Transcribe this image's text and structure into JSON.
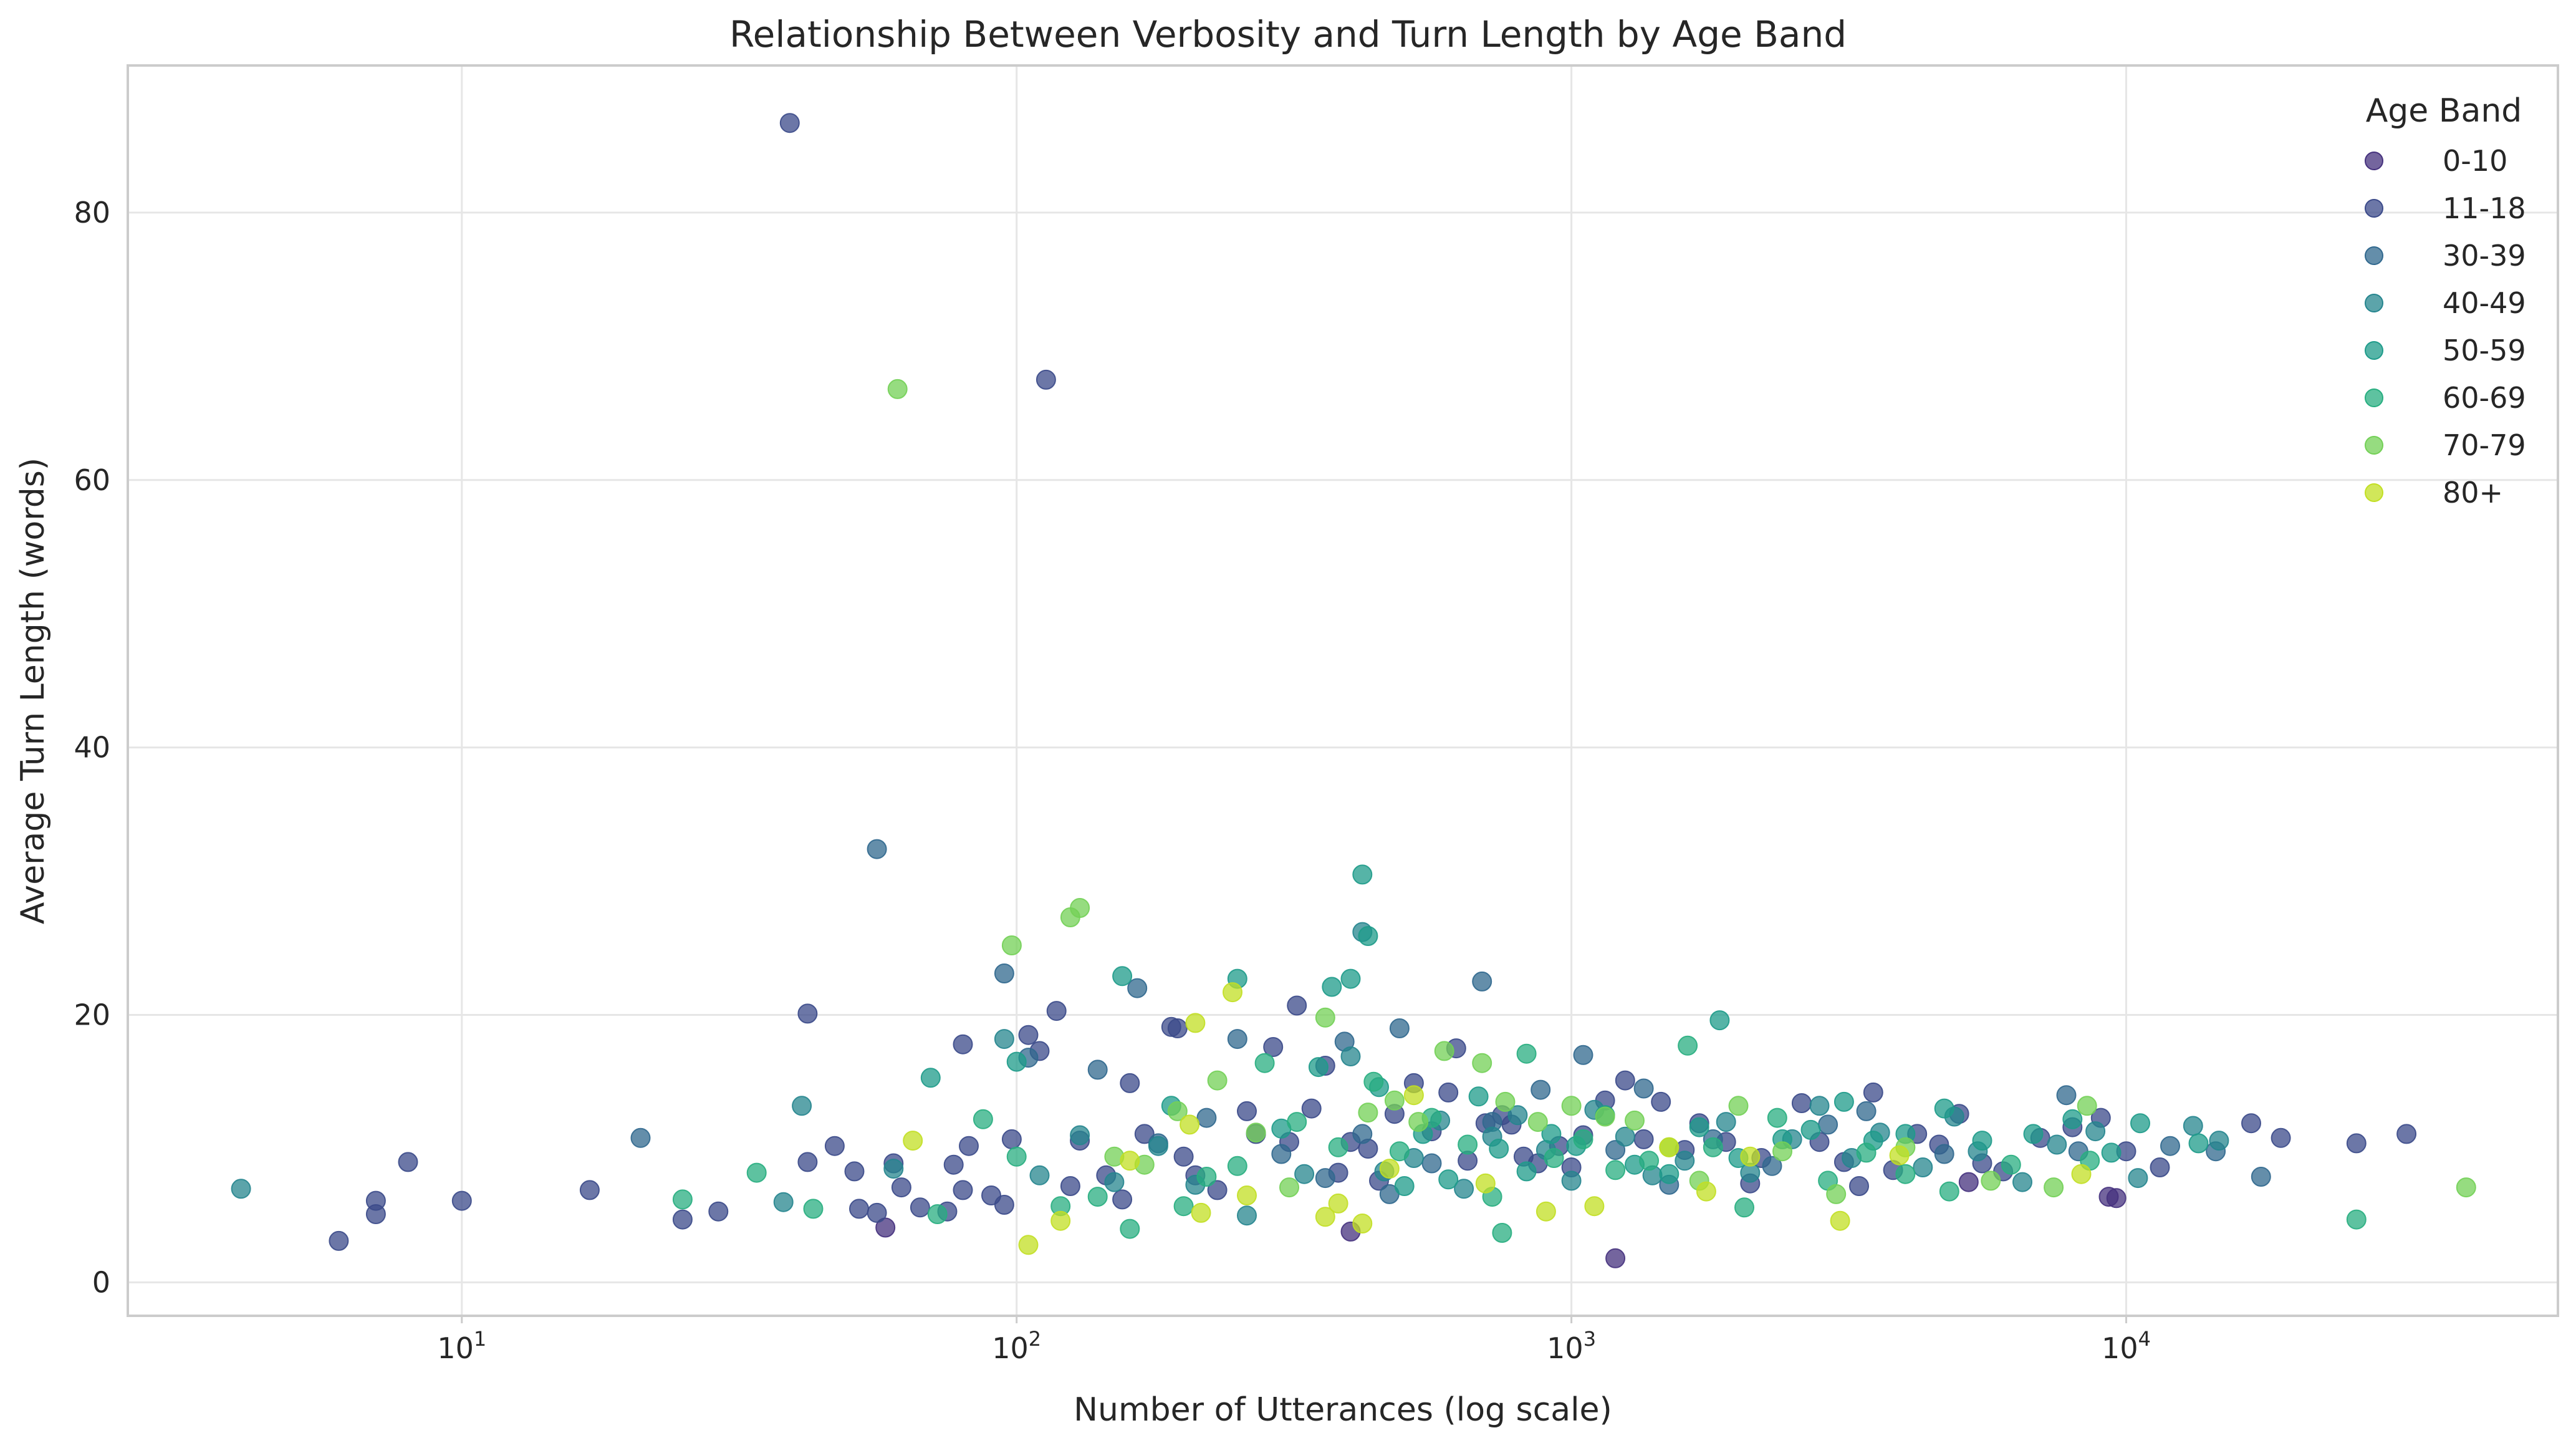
{
  "chart_data": {
    "type": "scatter",
    "title": "Relationship Between Verbosity and Turn Length by Age Band",
    "xlabel": "Number of Utterances (log scale)",
    "ylabel": "Average Turn Length (words)",
    "x_scale": "log",
    "xlim": [
      2.5,
      60000
    ],
    "ylim": [
      -2.5,
      91
    ],
    "x_ticks": [
      {
        "base": "10",
        "exp": "1",
        "value": 10
      },
      {
        "base": "10",
        "exp": "2",
        "value": 100
      },
      {
        "base": "10",
        "exp": "3",
        "value": 1000
      },
      {
        "base": "10",
        "exp": "4",
        "value": 10000
      }
    ],
    "y_ticks": [
      "0",
      "20",
      "40",
      "60",
      "80"
    ],
    "grid": true,
    "legend": {
      "title": "Age Band",
      "position": "upper right"
    },
    "series": [
      {
        "name": "0-10",
        "color": "#46327e",
        "points": [
          [
            58,
            4.1
          ],
          [
            400,
            3.8
          ],
          [
            1200,
            1.8
          ],
          [
            9300,
            6.4
          ],
          [
            9600,
            6.3
          ],
          [
            5200,
            7.5
          ]
        ]
      },
      {
        "name": "11-18",
        "color": "#3b4a8a",
        "points": [
          [
            39,
            86.7
          ],
          [
            113,
            67.5
          ],
          [
            6,
            3.1
          ],
          [
            7,
            5.1
          ],
          [
            7,
            6.1
          ],
          [
            8,
            9.0
          ],
          [
            10,
            6.1
          ],
          [
            17,
            6.9
          ],
          [
            25,
            4.7
          ],
          [
            29,
            5.3
          ],
          [
            42,
            20.1
          ],
          [
            42,
            9.0
          ],
          [
            47,
            10.2
          ],
          [
            51,
            8.3
          ],
          [
            52,
            5.5
          ],
          [
            56,
            5.2
          ],
          [
            60,
            8.9
          ],
          [
            62,
            7.1
          ],
          [
            67,
            5.6
          ],
          [
            75,
            5.3
          ],
          [
            77,
            8.8
          ],
          [
            80,
            17.8
          ],
          [
            80,
            6.9
          ],
          [
            82,
            10.2
          ],
          [
            90,
            6.5
          ],
          [
            95,
            5.8
          ],
          [
            98,
            10.7
          ],
          [
            105,
            18.5
          ],
          [
            110,
            17.3
          ],
          [
            118,
            20.3
          ],
          [
            125,
            7.2
          ],
          [
            130,
            10.6
          ],
          [
            145,
            8.0
          ],
          [
            155,
            6.2
          ],
          [
            160,
            14.9
          ],
          [
            170,
            11.1
          ],
          [
            190,
            19.1
          ],
          [
            195,
            19.0
          ],
          [
            200,
            9.4
          ],
          [
            210,
            8.0
          ],
          [
            230,
            6.9
          ],
          [
            260,
            12.8
          ],
          [
            270,
            11.1
          ],
          [
            290,
            17.6
          ],
          [
            310,
            10.5
          ],
          [
            320,
            20.7
          ],
          [
            340,
            13.0
          ],
          [
            360,
            16.2
          ],
          [
            380,
            8.2
          ],
          [
            400,
            10.5
          ],
          [
            430,
            10.0
          ],
          [
            450,
            7.6
          ],
          [
            480,
            12.6
          ],
          [
            520,
            14.9
          ],
          [
            560,
            11.3
          ],
          [
            600,
            14.2
          ],
          [
            620,
            17.5
          ],
          [
            650,
            9.1
          ],
          [
            700,
            11.9
          ],
          [
            750,
            12.5
          ],
          [
            780,
            11.8
          ],
          [
            820,
            9.4
          ],
          [
            870,
            8.9
          ],
          [
            950,
            10.2
          ],
          [
            1000,
            8.6
          ],
          [
            1050,
            11.0
          ],
          [
            1150,
            13.6
          ],
          [
            1250,
            15.1
          ],
          [
            1350,
            10.7
          ],
          [
            1450,
            13.5
          ],
          [
            1600,
            9.9
          ],
          [
            1700,
            11.9
          ],
          [
            1900,
            10.5
          ],
          [
            2100,
            7.4
          ],
          [
            2200,
            9.3
          ],
          [
            2600,
            13.4
          ],
          [
            2800,
            10.5
          ],
          [
            3100,
            9.0
          ],
          [
            3300,
            7.2
          ],
          [
            3500,
            14.2
          ],
          [
            3800,
            8.4
          ],
          [
            4200,
            11.1
          ],
          [
            4600,
            10.3
          ],
          [
            5000,
            12.6
          ],
          [
            5500,
            8.9
          ],
          [
            6000,
            8.3
          ],
          [
            7000,
            10.8
          ],
          [
            8000,
            11.6
          ],
          [
            9000,
            12.3
          ],
          [
            10000,
            9.8
          ],
          [
            11500,
            8.6
          ],
          [
            16800,
            11.9
          ],
          [
            19000,
            10.8
          ],
          [
            26000,
            10.4
          ],
          [
            32000,
            11.1
          ]
        ]
      },
      {
        "name": "30-39",
        "color": "#30688e",
        "points": [
          [
            21,
            10.8
          ],
          [
            56,
            32.4
          ],
          [
            95,
            23.1
          ],
          [
            105,
            16.8
          ],
          [
            140,
            15.9
          ],
          [
            165,
            22.0
          ],
          [
            180,
            10.4
          ],
          [
            220,
            12.3
          ],
          [
            250,
            18.2
          ],
          [
            300,
            9.6
          ],
          [
            360,
            7.8
          ],
          [
            390,
            18.0
          ],
          [
            420,
            11.1
          ],
          [
            470,
            6.6
          ],
          [
            490,
            19.0
          ],
          [
            560,
            8.9
          ],
          [
            690,
            22.5
          ],
          [
            720,
            12.0
          ],
          [
            880,
            14.4
          ],
          [
            1050,
            17.0
          ],
          [
            1200,
            9.9
          ],
          [
            1350,
            14.5
          ],
          [
            1500,
            7.3
          ],
          [
            1800,
            10.7
          ],
          [
            2300,
            8.7
          ],
          [
            2900,
            11.8
          ],
          [
            3400,
            12.8
          ],
          [
            4700,
            9.6
          ],
          [
            7800,
            14.0
          ],
          [
            8200,
            9.8
          ],
          [
            12000,
            10.2
          ],
          [
            14500,
            9.8
          ],
          [
            17500,
            7.9
          ]
        ]
      },
      {
        "name": "40-49",
        "color": "#25858e",
        "points": [
          [
            4,
            7.0
          ],
          [
            38,
            6.0
          ],
          [
            41,
            13.2
          ],
          [
            60,
            8.5
          ],
          [
            95,
            18.2
          ],
          [
            110,
            8.0
          ],
          [
            130,
            11.0
          ],
          [
            150,
            7.5
          ],
          [
            180,
            10.2
          ],
          [
            210,
            7.3
          ],
          [
            260,
            5.0
          ],
          [
            330,
            8.1
          ],
          [
            400,
            16.9
          ],
          [
            420,
            26.2
          ],
          [
            460,
            8.3
          ],
          [
            520,
            9.3
          ],
          [
            580,
            12.1
          ],
          [
            640,
            7.0
          ],
          [
            720,
            10.9
          ],
          [
            800,
            12.5
          ],
          [
            900,
            9.9
          ],
          [
            1000,
            7.6
          ],
          [
            1100,
            12.9
          ],
          [
            1250,
            10.9
          ],
          [
            1400,
            8.0
          ],
          [
            1600,
            9.1
          ],
          [
            1900,
            12.0
          ],
          [
            2100,
            8.2
          ],
          [
            2500,
            10.7
          ],
          [
            2800,
            13.2
          ],
          [
            3200,
            9.3
          ],
          [
            3600,
            11.2
          ],
          [
            4300,
            8.6
          ],
          [
            4900,
            12.4
          ],
          [
            5400,
            9.8
          ],
          [
            6500,
            7.5
          ],
          [
            7500,
            10.3
          ],
          [
            8800,
            11.3
          ],
          [
            10500,
            7.8
          ],
          [
            13200,
            11.7
          ],
          [
            14700,
            10.6
          ]
        ]
      },
      {
        "name": "50-59",
        "color": "#1e9b8a",
        "points": [
          [
            70,
            15.3
          ],
          [
            100,
            16.5
          ],
          [
            155,
            22.9
          ],
          [
            190,
            13.2
          ],
          [
            250,
            22.7
          ],
          [
            300,
            11.5
          ],
          [
            350,
            16.1
          ],
          [
            370,
            22.1
          ],
          [
            400,
            22.7
          ],
          [
            420,
            30.5
          ],
          [
            430,
            25.9
          ],
          [
            450,
            14.6
          ],
          [
            500,
            7.2
          ],
          [
            540,
            11.1
          ],
          [
            600,
            7.7
          ],
          [
            680,
            13.9
          ],
          [
            740,
            10.0
          ],
          [
            830,
            8.3
          ],
          [
            920,
            11.1
          ],
          [
            1020,
            10.2
          ],
          [
            1150,
            12.5
          ],
          [
            1300,
            8.8
          ],
          [
            1500,
            8.1
          ],
          [
            1700,
            11.6
          ],
          [
            1850,
            19.6
          ],
          [
            2000,
            9.3
          ],
          [
            2400,
            10.7
          ],
          [
            2700,
            11.4
          ],
          [
            3100,
            13.5
          ],
          [
            3500,
            10.6
          ],
          [
            4000,
            11.1
          ],
          [
            4700,
            13.0
          ],
          [
            5500,
            10.6
          ],
          [
            6800,
            11.1
          ],
          [
            8000,
            12.2
          ],
          [
            9400,
            9.7
          ],
          [
            10600,
            11.9
          ],
          [
            13500,
            10.4
          ]
        ]
      },
      {
        "name": "60-69",
        "color": "#28ae80",
        "points": [
          [
            25,
            6.2
          ],
          [
            34,
            8.2
          ],
          [
            43,
            5.5
          ],
          [
            72,
            5.1
          ],
          [
            87,
            12.2
          ],
          [
            100,
            9.4
          ],
          [
            120,
            5.7
          ],
          [
            140,
            6.4
          ],
          [
            160,
            4.0
          ],
          [
            200,
            5.7
          ],
          [
            220,
            7.9
          ],
          [
            250,
            8.7
          ],
          [
            280,
            16.4
          ],
          [
            320,
            12.0
          ],
          [
            380,
            10.1
          ],
          [
            440,
            15.0
          ],
          [
            490,
            9.8
          ],
          [
            560,
            12.3
          ],
          [
            650,
            10.3
          ],
          [
            720,
            6.4
          ],
          [
            750,
            3.7
          ],
          [
            830,
            17.1
          ],
          [
            930,
            9.3
          ],
          [
            1050,
            10.7
          ],
          [
            1200,
            8.4
          ],
          [
            1380,
            9.1
          ],
          [
            1620,
            17.7
          ],
          [
            1800,
            10.1
          ],
          [
            2050,
            5.6
          ],
          [
            2350,
            12.3
          ],
          [
            2900,
            7.6
          ],
          [
            3400,
            9.7
          ],
          [
            4000,
            8.1
          ],
          [
            4800,
            6.8
          ],
          [
            6200,
            8.8
          ],
          [
            8600,
            9.1
          ],
          [
            26000,
            4.7
          ]
        ]
      },
      {
        "name": "70-79",
        "color": "#73d056",
        "points": [
          [
            61,
            66.8
          ],
          [
            98,
            25.2
          ],
          [
            125,
            27.3
          ],
          [
            130,
            28.0
          ],
          [
            150,
            9.4
          ],
          [
            170,
            8.8
          ],
          [
            195,
            12.8
          ],
          [
            230,
            15.1
          ],
          [
            270,
            11.2
          ],
          [
            310,
            7.1
          ],
          [
            360,
            19.8
          ],
          [
            430,
            12.7
          ],
          [
            480,
            13.6
          ],
          [
            530,
            12.0
          ],
          [
            590,
            17.3
          ],
          [
            690,
            16.4
          ],
          [
            760,
            13.5
          ],
          [
            870,
            12.0
          ],
          [
            1000,
            13.2
          ],
          [
            1150,
            12.4
          ],
          [
            1300,
            12.1
          ],
          [
            1500,
            10.1
          ],
          [
            1700,
            7.6
          ],
          [
            2000,
            13.2
          ],
          [
            2400,
            9.8
          ],
          [
            3000,
            6.6
          ],
          [
            4000,
            10.1
          ],
          [
            5700,
            7.6
          ],
          [
            7400,
            7.1
          ],
          [
            8500,
            13.2
          ],
          [
            41000,
            7.1
          ]
        ]
      },
      {
        "name": "80+",
        "color": "#c2df23",
        "points": [
          [
            65,
            10.6
          ],
          [
            105,
            2.8
          ],
          [
            120,
            4.6
          ],
          [
            160,
            9.1
          ],
          [
            205,
            11.8
          ],
          [
            210,
            19.4
          ],
          [
            215,
            5.2
          ],
          [
            245,
            21.7
          ],
          [
            260,
            6.5
          ],
          [
            360,
            4.9
          ],
          [
            380,
            5.9
          ],
          [
            420,
            4.4
          ],
          [
            470,
            8.5
          ],
          [
            520,
            14.0
          ],
          [
            700,
            7.4
          ],
          [
            900,
            5.3
          ],
          [
            1100,
            5.7
          ],
          [
            1500,
            10.1
          ],
          [
            1750,
            6.8
          ],
          [
            2100,
            9.4
          ],
          [
            3050,
            4.6
          ],
          [
            3900,
            9.5
          ],
          [
            8300,
            8.1
          ]
        ]
      }
    ]
  }
}
